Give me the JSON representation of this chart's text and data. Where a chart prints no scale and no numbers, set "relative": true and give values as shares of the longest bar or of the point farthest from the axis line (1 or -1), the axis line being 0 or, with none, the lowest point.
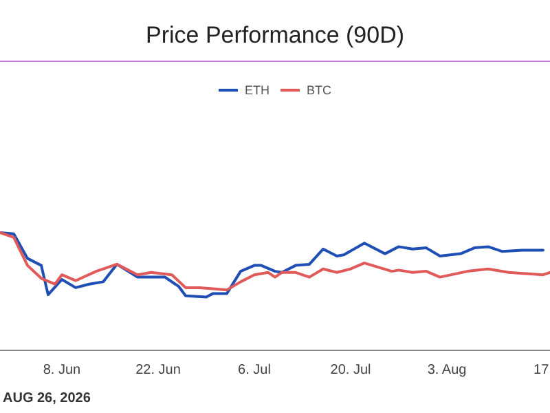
{
  "chart_data": {
    "type": "line",
    "title": "Price Performance (90D)",
    "relative": true,
    "legend": "top",
    "marker": "none",
    "line_style": "solid",
    "xlim": [
      "2026-05-30",
      "2026-08-18"
    ],
    "xticks": [
      {
        "value": "2026-06-08",
        "label": "8. Jun"
      },
      {
        "value": "2026-06-22",
        "label": "22. Jun"
      },
      {
        "value": "2026-07-06",
        "label": "6. Jul"
      },
      {
        "value": "2026-07-20",
        "label": "20. Jul"
      },
      {
        "value": "2026-08-03",
        "label": "3. Aug"
      },
      {
        "value": "2026-08-17",
        "label": "17."
      }
    ],
    "annotations": [
      "AUG 26, 2026"
    ],
    "series": [
      {
        "name": "ETH",
        "color": "#1f4fb5",
        "x": [
          "2026-05-30",
          "2026-06-01",
          "2026-06-03",
          "2026-06-05",
          "2026-06-06",
          "2026-06-08",
          "2026-06-10",
          "2026-06-12",
          "2026-06-14",
          "2026-06-16",
          "2026-06-19",
          "2026-06-23",
          "2026-06-25",
          "2026-06-26",
          "2026-06-29",
          "2026-06-30",
          "2026-07-02",
          "2026-07-04",
          "2026-07-06",
          "2026-07-07",
          "2026-07-09",
          "2026-07-10",
          "2026-07-12",
          "2026-07-14",
          "2026-07-16",
          "2026-07-18",
          "2026-07-19",
          "2026-07-22",
          "2026-07-25",
          "2026-07-27",
          "2026-07-29",
          "2026-07-31",
          "2026-08-02",
          "2026-08-05",
          "2026-08-07",
          "2026-08-09",
          "2026-08-11",
          "2026-08-14",
          "2026-08-17"
        ],
        "values": [
          1.0,
          0.99,
          0.78,
          0.72,
          0.47,
          0.6,
          0.53,
          0.56,
          0.58,
          0.73,
          0.62,
          0.62,
          0.54,
          0.46,
          0.45,
          0.48,
          0.48,
          0.67,
          0.72,
          0.72,
          0.67,
          0.66,
          0.72,
          0.73,
          0.86,
          0.8,
          0.81,
          0.91,
          0.82,
          0.88,
          0.86,
          0.87,
          0.8,
          0.82,
          0.87,
          0.88,
          0.84,
          0.85,
          0.85
        ]
      },
      {
        "name": "BTC",
        "color": "#e05a5a",
        "x": [
          "2026-05-30",
          "2026-06-01",
          "2026-06-03",
          "2026-06-05",
          "2026-06-07",
          "2026-06-08",
          "2026-06-10",
          "2026-06-13",
          "2026-06-16",
          "2026-06-19",
          "2026-06-21",
          "2026-06-24",
          "2026-06-26",
          "2026-06-28",
          "2026-06-30",
          "2026-07-02",
          "2026-07-04",
          "2026-07-06",
          "2026-07-08",
          "2026-07-09",
          "2026-07-10",
          "2026-07-12",
          "2026-07-14",
          "2026-07-16",
          "2026-07-18",
          "2026-07-20",
          "2026-07-22",
          "2026-07-26",
          "2026-07-27",
          "2026-07-29",
          "2026-07-31",
          "2026-08-02",
          "2026-08-06",
          "2026-08-09",
          "2026-08-12",
          "2026-08-17",
          "2026-08-18"
        ],
        "values": [
          1.0,
          0.96,
          0.72,
          0.61,
          0.56,
          0.64,
          0.59,
          0.67,
          0.73,
          0.64,
          0.66,
          0.64,
          0.53,
          0.53,
          0.52,
          0.51,
          0.58,
          0.64,
          0.66,
          0.62,
          0.66,
          0.66,
          0.62,
          0.69,
          0.66,
          0.69,
          0.74,
          0.67,
          0.68,
          0.66,
          0.67,
          0.62,
          0.67,
          0.69,
          0.66,
          0.64,
          0.66
        ]
      }
    ]
  }
}
